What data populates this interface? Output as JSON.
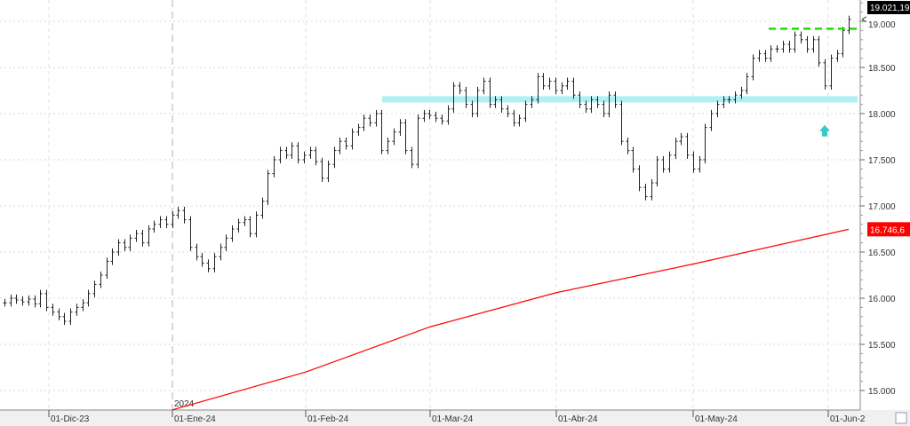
{
  "chart_data": {
    "type": "ohlc",
    "title": "",
    "xlabel": "",
    "ylabel": "",
    "ylim": [
      14800,
      19250
    ],
    "grid": true,
    "y_ticks": [
      "19.000",
      "18.500",
      "18.000",
      "17.500",
      "17.000",
      "16.500",
      "16.000",
      "15.500",
      "15.000"
    ],
    "y_tick_values": [
      19000,
      18500,
      18000,
      17500,
      17000,
      16500,
      16000,
      15500,
      15000
    ],
    "x_ticks": [
      "01-Dic-23",
      "01-Ene-24",
      "01-Feb-24",
      "01-Mar-24",
      "01-Abr-24",
      "01-May-24",
      "01-Jun-2"
    ],
    "year_marker": "2024",
    "last_price_label": "19.021,19",
    "last_price": 19021.19,
    "ma_label": "16.746,6",
    "ma_last": 16746.6,
    "closes": [
      15950,
      16000,
      15980,
      15960,
      15990,
      15940,
      16050,
      15900,
      15850,
      15800,
      15750,
      15850,
      15900,
      15950,
      16050,
      16150,
      16250,
      16400,
      16500,
      16600,
      16550,
      16650,
      16700,
      16600,
      16750,
      16800,
      16850,
      16800,
      16900,
      16950,
      16850,
      16550,
      16450,
      16380,
      16320,
      16450,
      16550,
      16650,
      16750,
      16820,
      16850,
      16700,
      16900,
      17050,
      17350,
      17500,
      17600,
      17550,
      17650,
      17500,
      17550,
      17600,
      17480,
      17300,
      17450,
      17600,
      17700,
      17650,
      17800,
      17850,
      17950,
      17900,
      18000,
      17600,
      17700,
      17800,
      17900,
      17600,
      17450,
      17950,
      18000,
      17980,
      17950,
      17920,
      18050,
      18300,
      18250,
      18100,
      18000,
      18250,
      18350,
      18100,
      18150,
      18050,
      18000,
      17900,
      17950,
      18100,
      18150,
      18400,
      18300,
      18350,
      18250,
      18300,
      18350,
      18200,
      18100,
      18050,
      18150,
      18100,
      18000,
      18200,
      18100,
      17700,
      17600,
      17400,
      17200,
      17100,
      17250,
      17500,
      17400,
      17550,
      17700,
      17750,
      17550,
      17400,
      17500,
      17850,
      18000,
      18100,
      18150,
      18150,
      18200,
      18250,
      18400,
      18600,
      18650,
      18600,
      18700,
      18700,
      18750,
      18700,
      18850,
      18800,
      18700,
      18800,
      18550,
      18300,
      18600,
      18650,
      18900,
      19021
    ],
    "series": [
      {
        "type": "ma",
        "color": "#ff0000",
        "points": [
          [
            "01-Ene-24",
            14790
          ],
          [
            "01-Feb-24",
            15200
          ],
          [
            "01-Mar-24",
            15690
          ],
          [
            "01-Abr-24",
            16060
          ],
          [
            "01-May-24",
            16370
          ],
          [
            "last",
            16746.6
          ]
        ]
      }
    ],
    "annotations": {
      "support_band": {
        "value": 18150,
        "color": "#aef0f4"
      },
      "resistance_line": {
        "value": 18920,
        "color": "#22dd00",
        "style": "dashed"
      },
      "arrow_up": {
        "value": 17800,
        "color": "#3cc8c8"
      }
    }
  }
}
